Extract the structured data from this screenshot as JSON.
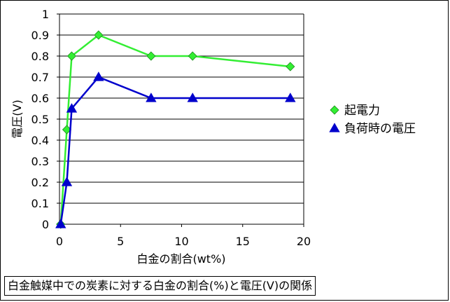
{
  "chart_data": {
    "type": "line",
    "xlabel": "白金の割合(wt%)",
    "ylabel": "電圧(V)",
    "xlim": [
      0,
      20
    ],
    "ylim": [
      0,
      1
    ],
    "xticks": [
      "0",
      "5",
      "10",
      "15",
      "20"
    ],
    "yticks": [
      "0",
      "0.1",
      "0.2",
      "0.3",
      "0.4",
      "0.5",
      "0.6",
      "0.7",
      "0.8",
      "0.9",
      "1"
    ],
    "grid": "horizontal",
    "legend_position": "right",
    "series": [
      {
        "name": "起電力",
        "color": "#33ee33",
        "marker": "diamond",
        "x": [
          0.1,
          0.6,
          1.0,
          3.2,
          7.5,
          10.9,
          18.9
        ],
        "y": [
          0,
          0.45,
          0.8,
          0.9,
          0.8,
          0.8,
          0.75
        ]
      },
      {
        "name": "負荷時の電圧",
        "color": "#0000cc",
        "marker": "triangle",
        "x": [
          0.1,
          0.6,
          1.0,
          3.2,
          7.5,
          10.9,
          18.9
        ],
        "y": [
          0,
          0.2,
          0.55,
          0.7,
          0.6,
          0.6,
          0.6
        ]
      }
    ]
  },
  "caption": "白金触媒中での炭素に対する白金の割合(%)と電圧(V)の関係"
}
